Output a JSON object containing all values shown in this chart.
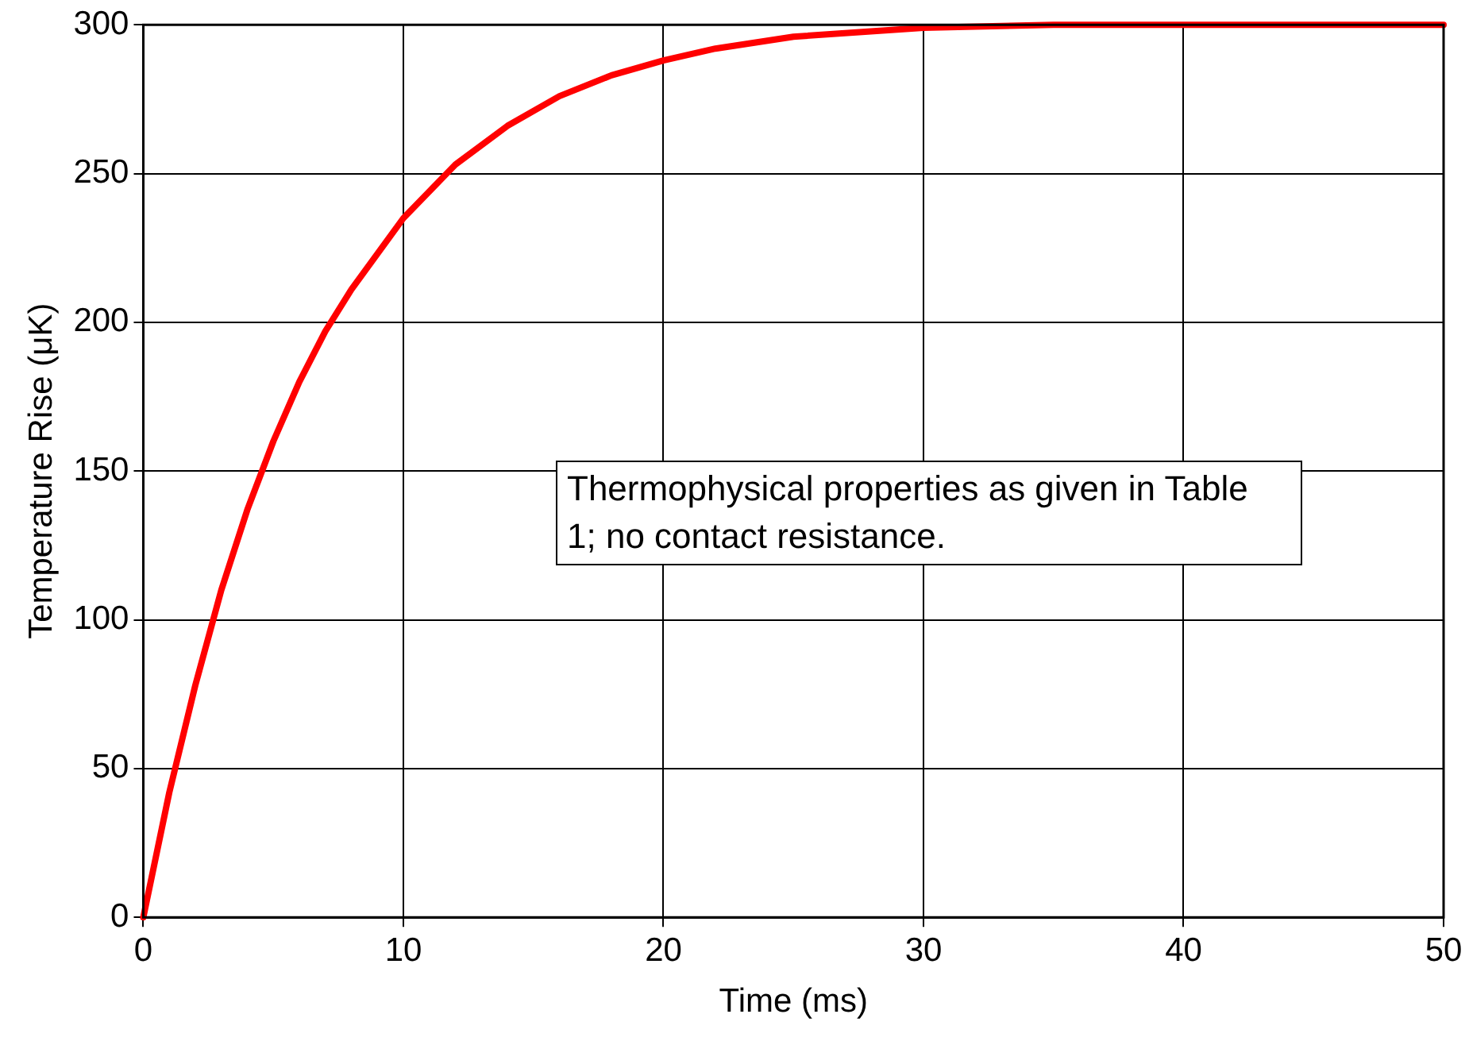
{
  "chart_data": {
    "type": "line",
    "xlabel": "Time (ms)",
    "ylabel": "Temperature Rise (μK)",
    "x": [
      0,
      1,
      2,
      3,
      4,
      5,
      6,
      7,
      8,
      10,
      12,
      14,
      16,
      18,
      20,
      22,
      25,
      30,
      35,
      40,
      45,
      50
    ],
    "series": [
      {
        "color": "#ff0000",
        "values": [
          0,
          42,
          78,
          110,
          137,
          160,
          180,
          197,
          211,
          235,
          253,
          266,
          276,
          283,
          288,
          292,
          296,
          299,
          300,
          300,
          300,
          300
        ]
      }
    ],
    "xlim": [
      0,
      50
    ],
    "xticks": [
      0,
      10,
      20,
      30,
      40,
      50
    ],
    "ylim": [
      0,
      300
    ],
    "yticks": [
      0,
      50,
      100,
      150,
      200,
      250,
      300
    ],
    "grid": true,
    "legend": false,
    "marker": "none",
    "line_style": "solid",
    "annotations": [
      "Thermophysical properties as given in Table 1; no contact resistance."
    ]
  }
}
